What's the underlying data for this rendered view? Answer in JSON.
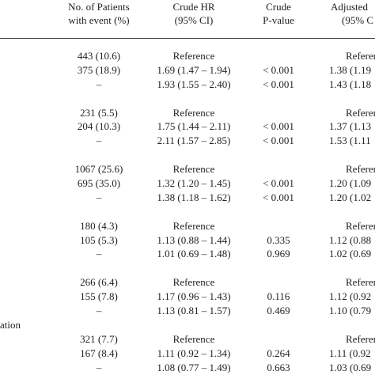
{
  "table": {
    "header": [
      [
        "No. of Patients",
        "with event (%)"
      ],
      [
        "Crude HR",
        "(95% CI)"
      ],
      [
        "Crude",
        "P-value"
      ],
      [
        "Adjusted",
        "(95% C"
      ]
    ],
    "groups": [
      [
        [
          "443 (10.6)",
          "Reference",
          null,
          "Referen"
        ],
        [
          "375 (18.9)",
          "1.69 (1.47 – 1.94)",
          "< 0.001",
          "1.38 (1.19"
        ],
        [
          "–",
          "1.93 (1.55 – 2.40)",
          "< 0.001",
          "1.43 (1.18"
        ]
      ],
      [
        [
          "231 (5.5)",
          "Reference",
          null,
          "Referen"
        ],
        [
          "204 (10.3)",
          "1.75 (1.44 – 2.11)",
          "< 0.001",
          "1.37 (1.13"
        ],
        [
          "–",
          "2.11 (1.57 – 2.85)",
          "< 0.001",
          "1.53 (1.11"
        ]
      ],
      [
        [
          "1067 (25.6)",
          "Reference",
          null,
          "Referen"
        ],
        [
          "695 (35.0)",
          "1.32 (1.20 – 1.45)",
          "< 0.001",
          "1.20 (1.09"
        ],
        [
          "–",
          "1.38 (1.18 – 1.62)",
          "< 0.001",
          "1.20 (1.02"
        ]
      ],
      [
        [
          "180 (4.3)",
          "Reference",
          null,
          "Referen"
        ],
        [
          "105 (5.3)",
          "1.13 (0.88 – 1.44)",
          "0.335",
          "1.12 (0.88"
        ],
        [
          "–",
          "1.01 (0.69 – 1.48)",
          "0.969",
          "1.02 (0.69"
        ]
      ],
      [
        [
          "266 (6.4)",
          "Reference",
          null,
          "Referen"
        ],
        [
          "155 (7.8)",
          "1.17 (0.96 – 1.43)",
          "0.116",
          "1.12 (0.92"
        ],
        [
          "–",
          "1.13 (0.81 – 1.57)",
          "0.469",
          "1.10 (0.79"
        ]
      ],
      [
        [
          "321 (7.7)",
          "Reference",
          null,
          "Referen"
        ],
        [
          "167 (8.4)",
          "1.11 (0.92 – 1.34)",
          "0.264",
          "1.11 (0.92"
        ],
        [
          "–",
          "1.08 (0.77 – 1.49)",
          "0.663",
          "1.03 (0.69"
        ]
      ]
    ],
    "side_label": "ation"
  }
}
